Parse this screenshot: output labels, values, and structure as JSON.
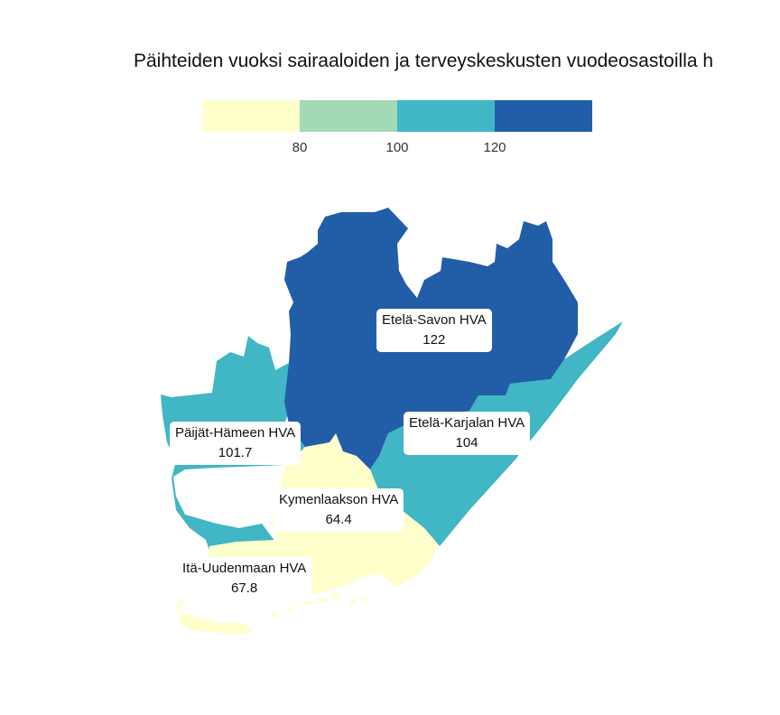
{
  "title": "Päihteiden vuoksi sairaaloiden ja terveyskeskusten vuodeosastoilla h",
  "legend": {
    "colors": [
      "#ffffcc",
      "#a1dab4",
      "#41b6c4",
      "#225ea8"
    ],
    "ticks": [
      "80",
      "100",
      "120"
    ]
  },
  "regions": [
    {
      "name": "Etelä-Savon HVA",
      "value": "122",
      "color": "#225ea8"
    },
    {
      "name": "Päijät-Hämeen HVA",
      "value": "101.7",
      "color": "#41b6c4"
    },
    {
      "name": "Etelä-Karjalan HVA",
      "value": "104",
      "color": "#41b6c4"
    },
    {
      "name": "Kymenlaakson HVA",
      "value": "64.4",
      "color": "#ffffcc"
    },
    {
      "name": "Itä-Uudenmaan HVA",
      "value": "67.8",
      "color": "#ffffcc"
    }
  ]
}
